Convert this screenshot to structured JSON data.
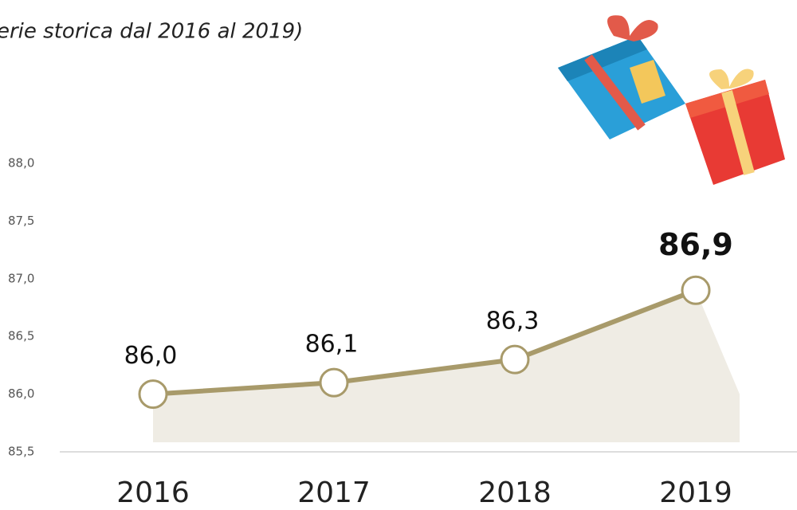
{
  "chart_data": {
    "type": "line",
    "subtitle": "erie storica dal 2016 al 2019)",
    "categories": [
      "2016",
      "2017",
      "2018",
      "2019"
    ],
    "series": [
      {
        "values": [
          86.0,
          86.1,
          86.3,
          86.9
        ],
        "value_labels": [
          "86,0",
          "86,1",
          "86,3",
          "86,9"
        ],
        "color": "#a89a6a"
      }
    ],
    "ylim": [
      85.5,
      88.0
    ],
    "yticks": [
      {
        "value": 85.5,
        "label": "85,5"
      },
      {
        "value": 86.0,
        "label": "86,0"
      },
      {
        "value": 86.5,
        "label": "86,5"
      },
      {
        "value": 87.0,
        "label": "87,0"
      },
      {
        "value": 87.5,
        "label": "87,5"
      },
      {
        "value": 88.0,
        "label": "88,0"
      }
    ],
    "grid": false
  }
}
